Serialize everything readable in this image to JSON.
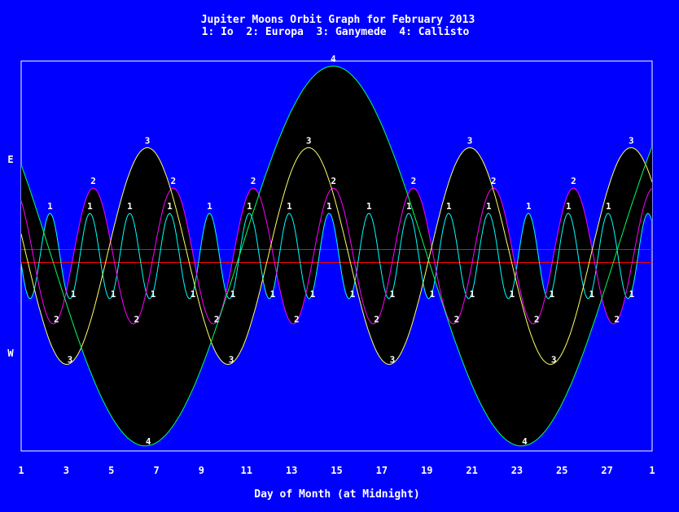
{
  "chart_data": {
    "type": "line",
    "title": "Jupiter Moons Orbit Graph for February 2013",
    "subtitle": "1: Io  2: Europa  3: Ganymede  4: Callisto",
    "xlabel": "Day of Month (at Midnight)",
    "x_ticks": [
      "1",
      "3",
      "5",
      "7",
      "9",
      "11",
      "13",
      "15",
      "17",
      "19",
      "21",
      "23",
      "25",
      "27",
      "1"
    ],
    "xlim": [
      1,
      29
    ],
    "y_side_labels": {
      "east": "E",
      "west": "W"
    },
    "ylim": [
      -27,
      27
    ],
    "jupiter_band": [
      -0.9,
      0.9
    ],
    "colors": {
      "background": "#0000ff",
      "plot_area": "#000000",
      "jupiter_band": "#ff0000",
      "io": "#00ffff",
      "europa": "#ff00ff",
      "ganymede": "#ffff66",
      "callisto": "#00ff66",
      "text": "#ffffff"
    },
    "series": [
      {
        "name": "1",
        "color_key": "io",
        "amplitude": 5.9,
        "period_days": 1.769,
        "east_max_day": 2.28,
        "east_max_days": [
          2.28,
          4.05,
          5.82,
          7.59,
          9.36,
          11.13,
          12.9,
          14.67,
          16.44,
          18.21,
          19.98,
          21.75,
          23.52,
          25.29,
          27.06
        ],
        "west_max_days": [
          3.17,
          4.94,
          6.71,
          8.48,
          10.25,
          12.02,
          13.79,
          15.56,
          17.33,
          19.1,
          20.87,
          22.64,
          24.41,
          26.18,
          27.95
        ]
      },
      {
        "name": "2",
        "color_key": "europa",
        "amplitude": 9.4,
        "period_days": 3.551,
        "east_max_day": 4.2,
        "east_max_days": [
          4.2,
          7.75,
          11.3,
          14.86,
          18.41,
          21.96,
          25.51
        ],
        "west_max_days": [
          2.42,
          5.98,
          9.53,
          13.08,
          16.63,
          20.18,
          23.73,
          27.29
        ]
      },
      {
        "name": "3",
        "color_key": "ganymede",
        "amplitude": 15.0,
        "period_days": 7.155,
        "east_max_day": 6.6,
        "east_max_days": [
          6.6,
          13.76,
          20.91,
          28.07
        ],
        "west_max_days": [
          3.02,
          10.18,
          17.33,
          24.49
        ]
      },
      {
        "name": "4",
        "color_key": "callisto",
        "amplitude": 26.3,
        "period_days": 16.689,
        "east_max_day": 14.85,
        "east_max_days": [
          14.85
        ],
        "west_max_days": [
          6.5,
          23.2
        ]
      }
    ]
  }
}
